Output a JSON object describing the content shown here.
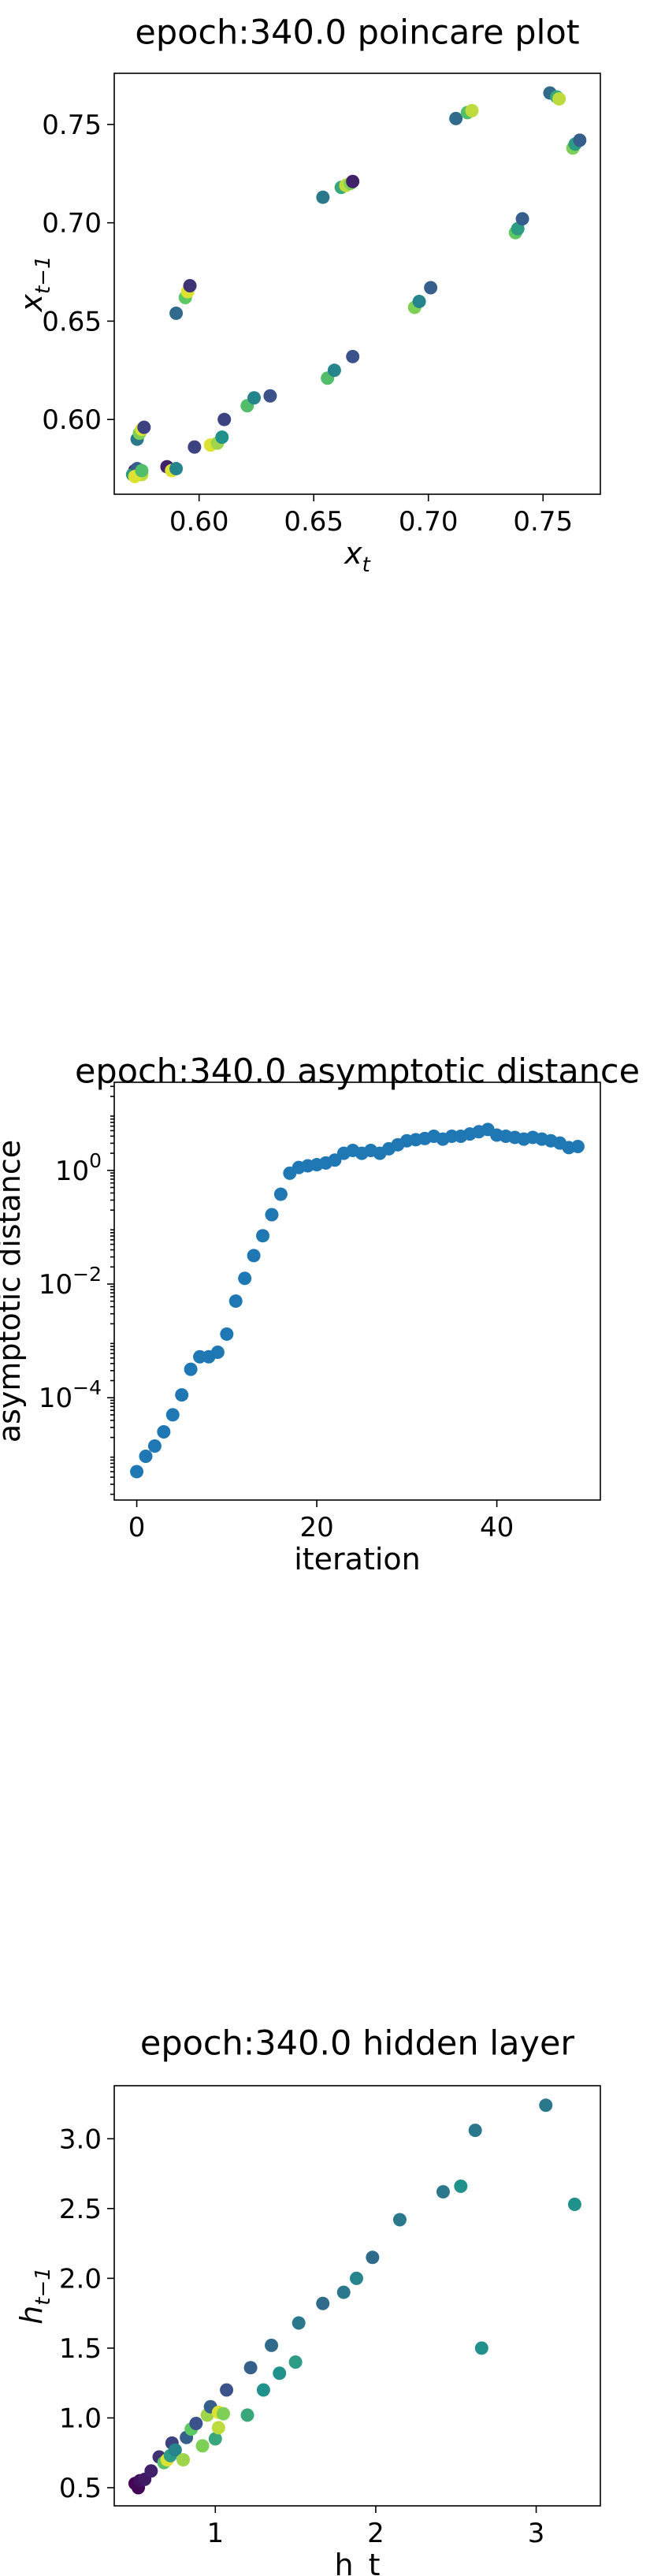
{
  "chart_data": [
    {
      "type": "scatter",
      "title": "epoch:340.0 poincare plot",
      "xlabel": "x_t",
      "ylabel": "x_{t-1}",
      "xlim": [
        0.563,
        0.775
      ],
      "ylim": [
        0.562,
        0.776
      ],
      "xticks": [
        0.6,
        0.65,
        0.7,
        0.75
      ],
      "xtick_labels": [
        "0.60",
        "0.65",
        "0.70",
        "0.75"
      ],
      "yticks": [
        0.6,
        0.65,
        0.7,
        0.75
      ],
      "ytick_labels": [
        "0.60",
        "0.65",
        "0.70",
        "0.75"
      ],
      "colormap": "viridis",
      "points": [
        {
          "x": 0.572,
          "y": 0.574,
          "c": 0.05
        },
        {
          "x": 0.574,
          "y": 0.573,
          "c": 0.15
        },
        {
          "x": 0.575,
          "y": 0.572,
          "c": 0.9
        },
        {
          "x": 0.571,
          "y": 0.572,
          "c": 0.55
        },
        {
          "x": 0.573,
          "y": 0.575,
          "c": 0.3
        },
        {
          "x": 0.572,
          "y": 0.571,
          "c": 0.95
        },
        {
          "x": 0.575,
          "y": 0.574,
          "c": 0.7
        },
        {
          "x": 0.573,
          "y": 0.59,
          "c": 0.4
        },
        {
          "x": 0.574,
          "y": 0.593,
          "c": 0.8
        },
        {
          "x": 0.575,
          "y": 0.595,
          "c": 0.95
        },
        {
          "x": 0.576,
          "y": 0.596,
          "c": 0.2
        },
        {
          "x": 0.586,
          "y": 0.576,
          "c": 0.1
        },
        {
          "x": 0.588,
          "y": 0.574,
          "c": 0.95
        },
        {
          "x": 0.59,
          "y": 0.575,
          "c": 0.45
        },
        {
          "x": 0.59,
          "y": 0.654,
          "c": 0.35
        },
        {
          "x": 0.594,
          "y": 0.662,
          "c": 0.75
        },
        {
          "x": 0.595,
          "y": 0.665,
          "c": 0.95
        },
        {
          "x": 0.596,
          "y": 0.668,
          "c": 0.15
        },
        {
          "x": 0.598,
          "y": 0.586,
          "c": 0.2
        },
        {
          "x": 0.605,
          "y": 0.587,
          "c": 0.95
        },
        {
          "x": 0.608,
          "y": 0.588,
          "c": 0.85
        },
        {
          "x": 0.61,
          "y": 0.591,
          "c": 0.5
        },
        {
          "x": 0.611,
          "y": 0.6,
          "c": 0.2
        },
        {
          "x": 0.621,
          "y": 0.607,
          "c": 0.7
        },
        {
          "x": 0.624,
          "y": 0.611,
          "c": 0.45
        },
        {
          "x": 0.631,
          "y": 0.612,
          "c": 0.25
        },
        {
          "x": 0.654,
          "y": 0.713,
          "c": 0.4
        },
        {
          "x": 0.656,
          "y": 0.621,
          "c": 0.7
        },
        {
          "x": 0.659,
          "y": 0.625,
          "c": 0.45
        },
        {
          "x": 0.662,
          "y": 0.718,
          "c": 0.6
        },
        {
          "x": 0.664,
          "y": 0.719,
          "c": 0.9
        },
        {
          "x": 0.666,
          "y": 0.72,
          "c": 0.8
        },
        {
          "x": 0.667,
          "y": 0.721,
          "c": 0.1
        },
        {
          "x": 0.667,
          "y": 0.632,
          "c": 0.25
        },
        {
          "x": 0.694,
          "y": 0.657,
          "c": 0.8
        },
        {
          "x": 0.696,
          "y": 0.66,
          "c": 0.45
        },
        {
          "x": 0.701,
          "y": 0.667,
          "c": 0.3
        },
        {
          "x": 0.712,
          "y": 0.753,
          "c": 0.35
        },
        {
          "x": 0.717,
          "y": 0.756,
          "c": 0.7
        },
        {
          "x": 0.719,
          "y": 0.757,
          "c": 0.9
        },
        {
          "x": 0.738,
          "y": 0.695,
          "c": 0.75
        },
        {
          "x": 0.739,
          "y": 0.697,
          "c": 0.55
        },
        {
          "x": 0.741,
          "y": 0.702,
          "c": 0.3
        },
        {
          "x": 0.753,
          "y": 0.766,
          "c": 0.35
        },
        {
          "x": 0.756,
          "y": 0.764,
          "c": 0.6
        },
        {
          "x": 0.757,
          "y": 0.763,
          "c": 0.9
        },
        {
          "x": 0.763,
          "y": 0.738,
          "c": 0.8
        },
        {
          "x": 0.764,
          "y": 0.74,
          "c": 0.55
        },
        {
          "x": 0.766,
          "y": 0.742,
          "c": 0.3
        }
      ]
    },
    {
      "type": "scatter",
      "title": "epoch:340.0 asymptotic distance",
      "xlabel": "iteration",
      "ylabel": "asymptotic distance",
      "yscale": "log",
      "xlim": [
        -2.5,
        51.5
      ],
      "ylim_log10": [
        -5.8,
        1.55
      ],
      "xticks": [
        0,
        20,
        40
      ],
      "xtick_labels": [
        "0",
        "20",
        "40"
      ],
      "ytick_exponents": [
        -4,
        -2,
        0
      ],
      "ytick_labels": [
        "10",
        "10",
        "10"
      ],
      "ytick_sup": [
        "−4",
        "−2",
        "0"
      ],
      "color": "#1f77b4",
      "x": [
        0,
        1,
        2,
        3,
        4,
        5,
        6,
        7,
        8,
        9,
        10,
        11,
        12,
        13,
        14,
        15,
        16,
        17,
        18,
        19,
        20,
        21,
        22,
        23,
        24,
        25,
        26,
        27,
        28,
        29,
        30,
        31,
        32,
        33,
        34,
        35,
        36,
        37,
        38,
        39,
        40,
        41,
        42,
        43,
        44,
        45,
        46,
        47,
        48,
        49
      ],
      "log10_y": [
        -5.3,
        -5.03,
        -4.85,
        -4.6,
        -4.3,
        -3.95,
        -3.5,
        -3.28,
        -3.28,
        -3.2,
        -2.88,
        -2.3,
        -1.9,
        -1.5,
        -1.15,
        -0.78,
        -0.42,
        -0.05,
        0.05,
        0.08,
        0.1,
        0.13,
        0.18,
        0.3,
        0.35,
        0.3,
        0.35,
        0.3,
        0.38,
        0.45,
        0.52,
        0.54,
        0.56,
        0.6,
        0.55,
        0.6,
        0.6,
        0.64,
        0.68,
        0.72,
        0.62,
        0.6,
        0.58,
        0.55,
        0.58,
        0.55,
        0.52,
        0.48,
        0.4,
        0.42
      ]
    },
    {
      "type": "scatter",
      "title": "epoch:340.0 hidden layer",
      "xlabel": "h_t",
      "ylabel": "h_{t-1}",
      "xlim": [
        0.37,
        3.4
      ],
      "ylim": [
        0.37,
        3.38
      ],
      "xticks": [
        1,
        2,
        3
      ],
      "xtick_labels": [
        "1",
        "2",
        "3"
      ],
      "yticks": [
        0.5,
        1.0,
        1.5,
        2.0,
        2.5,
        3.0
      ],
      "ytick_labels": [
        "0.5",
        "1.0",
        "1.5",
        "2.0",
        "2.5",
        "3.0"
      ],
      "colormap": "viridis",
      "points": [
        {
          "x": 0.5,
          "y": 0.53,
          "c": 0.0
        },
        {
          "x": 0.52,
          "y": 0.5,
          "c": 0.02
        },
        {
          "x": 0.53,
          "y": 0.55,
          "c": 0.05
        },
        {
          "x": 0.56,
          "y": 0.56,
          "c": 0.08
        },
        {
          "x": 0.6,
          "y": 0.62,
          "c": 0.1
        },
        {
          "x": 0.65,
          "y": 0.72,
          "c": 0.15
        },
        {
          "x": 0.68,
          "y": 0.68,
          "c": 0.72
        },
        {
          "x": 0.7,
          "y": 0.7,
          "c": 0.95
        },
        {
          "x": 0.72,
          "y": 0.73,
          "c": 0.55
        },
        {
          "x": 0.73,
          "y": 0.82,
          "c": 0.2
        },
        {
          "x": 0.75,
          "y": 0.77,
          "c": 0.45
        },
        {
          "x": 0.8,
          "y": 0.7,
          "c": 0.85
        },
        {
          "x": 0.82,
          "y": 0.86,
          "c": 0.3
        },
        {
          "x": 0.85,
          "y": 0.92,
          "c": 0.75
        },
        {
          "x": 0.88,
          "y": 0.96,
          "c": 0.25
        },
        {
          "x": 0.92,
          "y": 0.8,
          "c": 0.8
        },
        {
          "x": 0.95,
          "y": 1.02,
          "c": 0.85
        },
        {
          "x": 0.97,
          "y": 1.08,
          "c": 0.3
        },
        {
          "x": 1.0,
          "y": 0.85,
          "c": 0.6
        },
        {
          "x": 1.02,
          "y": 1.04,
          "c": 0.95
        },
        {
          "x": 1.05,
          "y": 1.03,
          "c": 0.8
        },
        {
          "x": 1.02,
          "y": 0.93,
          "c": 0.9
        },
        {
          "x": 1.07,
          "y": 1.2,
          "c": 0.25
        },
        {
          "x": 1.2,
          "y": 1.02,
          "c": 0.6
        },
        {
          "x": 1.22,
          "y": 1.36,
          "c": 0.3
        },
        {
          "x": 1.3,
          "y": 1.2,
          "c": 0.5
        },
        {
          "x": 1.35,
          "y": 1.52,
          "c": 0.35
        },
        {
          "x": 1.4,
          "y": 1.32,
          "c": 0.5
        },
        {
          "x": 1.5,
          "y": 1.4,
          "c": 0.55
        },
        {
          "x": 1.52,
          "y": 1.68,
          "c": 0.4
        },
        {
          "x": 1.67,
          "y": 1.82,
          "c": 0.35
        },
        {
          "x": 1.8,
          "y": 1.9,
          "c": 0.4
        },
        {
          "x": 1.88,
          "y": 2.0,
          "c": 0.45
        },
        {
          "x": 1.98,
          "y": 2.15,
          "c": 0.35
        },
        {
          "x": 2.15,
          "y": 2.42,
          "c": 0.4
        },
        {
          "x": 2.42,
          "y": 2.62,
          "c": 0.4
        },
        {
          "x": 2.53,
          "y": 2.66,
          "c": 0.5
        },
        {
          "x": 2.62,
          "y": 3.06,
          "c": 0.4
        },
        {
          "x": 2.66,
          "y": 1.5,
          "c": 0.5
        },
        {
          "x": 3.06,
          "y": 3.24,
          "c": 0.4
        },
        {
          "x": 3.24,
          "y": 2.53,
          "c": 0.5
        }
      ]
    }
  ]
}
